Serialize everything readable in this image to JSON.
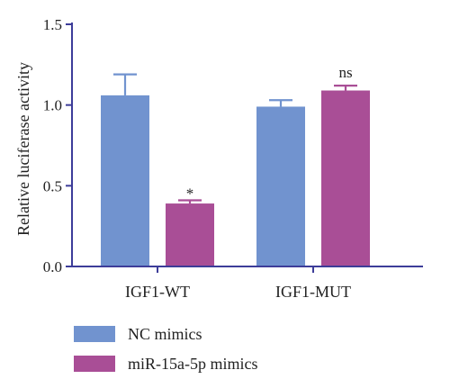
{
  "chart_data": {
    "type": "bar",
    "categories": [
      "IGF1-WT",
      "IGF1-MUT"
    ],
    "series": [
      {
        "name": "NC mimics",
        "values": [
          1.06,
          0.99
        ],
        "errors": [
          0.13,
          0.04
        ],
        "color": "#7193cf"
      },
      {
        "name": "miR-15a-5p mimics",
        "values": [
          0.39,
          1.09
        ],
        "errors": [
          0.02,
          0.03
        ],
        "color": "#a94e96"
      }
    ],
    "annotations": [
      {
        "category_index": 0,
        "series_index": 1,
        "text": "*"
      },
      {
        "category_index": 1,
        "series_index": 1,
        "text": "ns"
      }
    ],
    "title": "",
    "xlabel": "",
    "ylabel": "Relative luciferase activity",
    "ylim": [
      0,
      1.5
    ],
    "yticks": [
      0.0,
      0.5,
      1.0,
      1.5
    ],
    "ytick_labels": [
      "0.0",
      "0.5",
      "1.0",
      "1.5"
    ],
    "axis_color": "#3d3d99",
    "grid": false,
    "legend_position": "bottom-left"
  }
}
